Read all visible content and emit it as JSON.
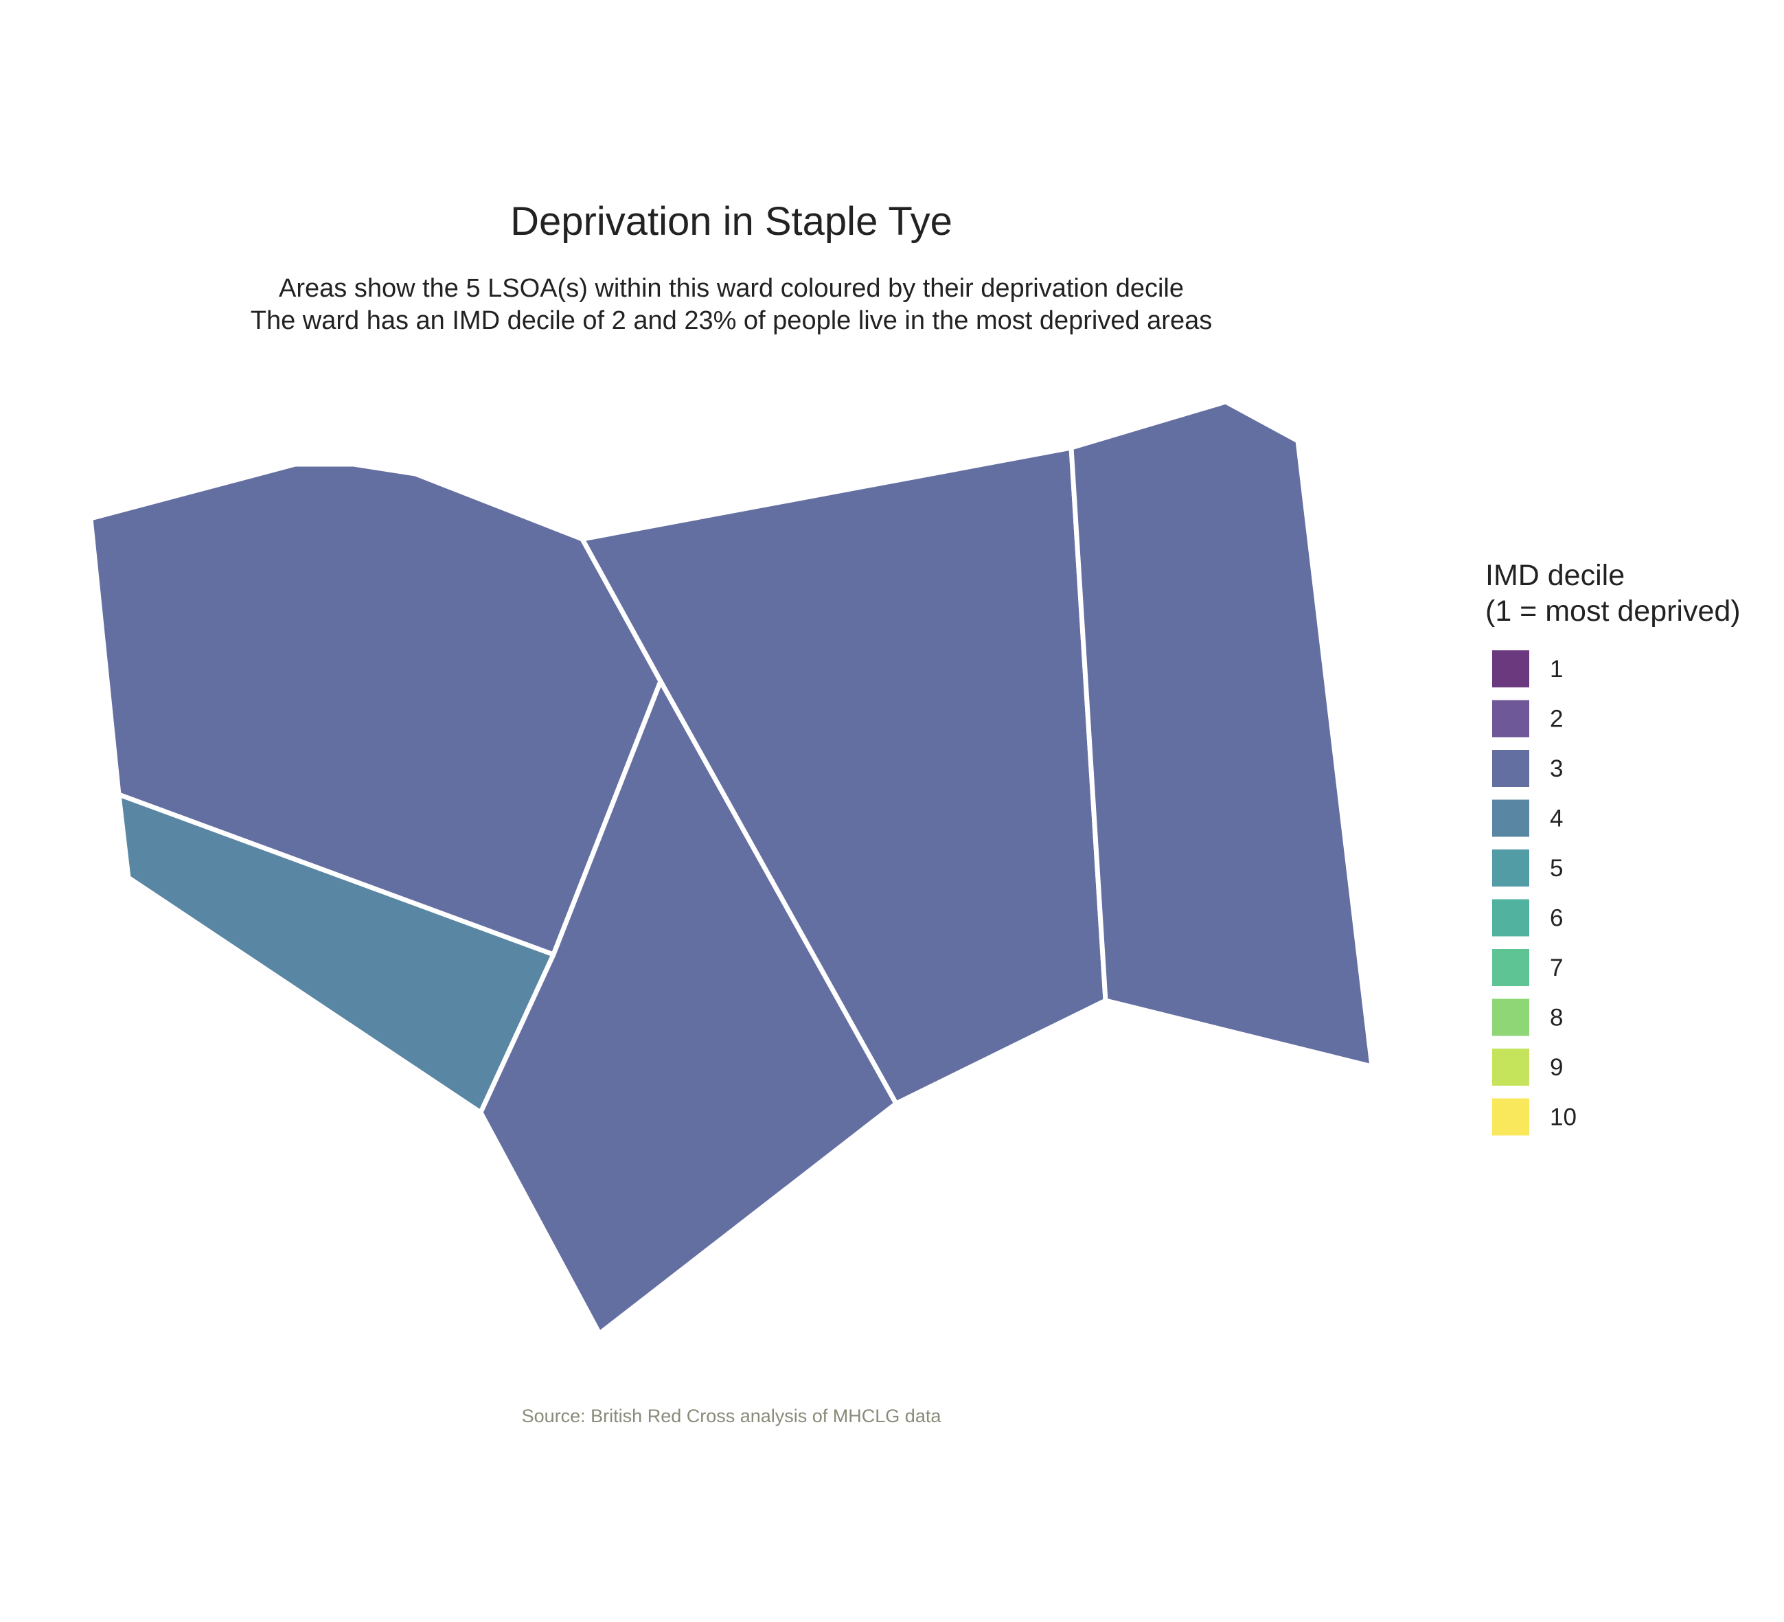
{
  "title": "Deprivation in Staple Tye",
  "subtitle_lines": [
    "Areas show the 5 LSOA(s) within this ward coloured by their deprivation decile",
    "The ward has an IMD decile of 2 and 23% of people live in the most deprived areas"
  ],
  "caption": "Source: British Red Cross analysis of MHCLG data",
  "legend": {
    "title_lines": [
      "IMD decile",
      "(1 = most deprived)"
    ],
    "items": [
      {
        "label": "1",
        "color": "#6b3a7e"
      },
      {
        "label": "2",
        "color": "#6f5898"
      },
      {
        "label": "3",
        "color": "#646fa1"
      },
      {
        "label": "4",
        "color": "#5986a3"
      },
      {
        "label": "5",
        "color": "#529ca6"
      },
      {
        "label": "6",
        "color": "#51b2a0"
      },
      {
        "label": "7",
        "color": "#5fc494"
      },
      {
        "label": "8",
        "color": "#8ed676"
      },
      {
        "label": "9",
        "color": "#c5e35b"
      },
      {
        "label": "10",
        "color": "#f9e85c"
      }
    ]
  },
  "areas": [
    {
      "name": "lsoa-northwest",
      "decile": 3,
      "color": "#646fa1"
    },
    {
      "name": "lsoa-southwest",
      "decile": 4,
      "color": "#5986a3"
    },
    {
      "name": "lsoa-south",
      "decile": 3,
      "color": "#646fa1"
    },
    {
      "name": "lsoa-central",
      "decile": 3,
      "color": "#646fa1"
    },
    {
      "name": "lsoa-east",
      "decile": 3,
      "color": "#646fa1"
    }
  ]
}
